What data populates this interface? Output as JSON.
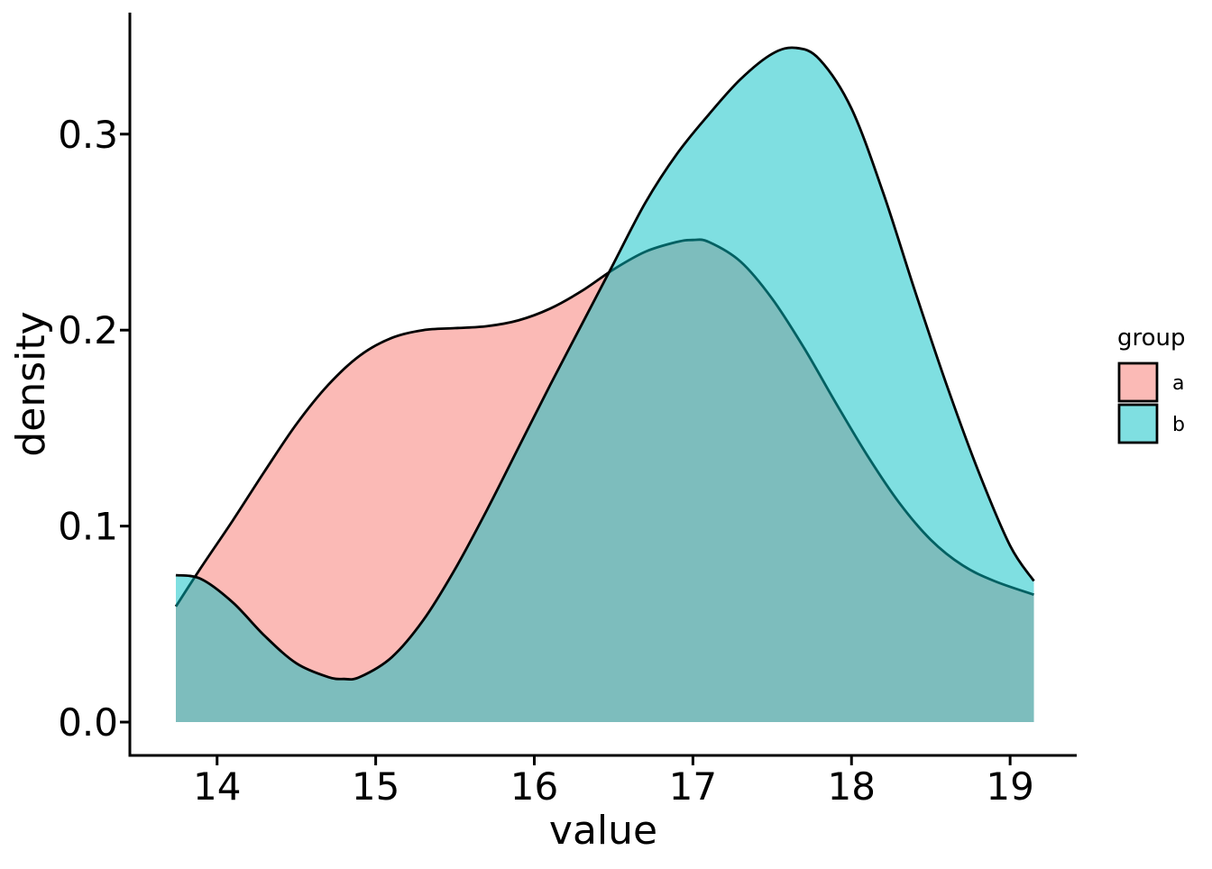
{
  "chart_data": {
    "type": "area",
    "chart_kind": "density",
    "xlabel": "value",
    "ylabel": "density",
    "xlim": [
      13.45,
      19.42
    ],
    "ylim": [
      -0.017,
      0.362
    ],
    "x_ticks": [
      14,
      15,
      16,
      17,
      18,
      19
    ],
    "x_tick_labels": [
      "14",
      "15",
      "16",
      "17",
      "18",
      "19"
    ],
    "y_ticks": [
      0.0,
      0.1,
      0.2,
      0.3
    ],
    "y_tick_labels": [
      "0.0",
      "0.1",
      "0.2",
      "0.3"
    ],
    "grid": false,
    "fill_opacity": 0.5,
    "legend": {
      "title": "group",
      "placement": "right",
      "entries": [
        "a",
        "b"
      ]
    },
    "series": [
      {
        "name": "a",
        "color": "#F8766D",
        "x": [
          13.74,
          13.9,
          14.1,
          14.3,
          14.5,
          14.7,
          14.9,
          15.1,
          15.3,
          15.5,
          15.7,
          15.9,
          16.1,
          16.3,
          16.5,
          16.7,
          16.9,
          17.0,
          17.1,
          17.3,
          17.5,
          17.7,
          17.9,
          18.1,
          18.3,
          18.5,
          18.7,
          18.9,
          19.15
        ],
        "y": [
          0.059,
          0.079,
          0.103,
          0.128,
          0.152,
          0.172,
          0.187,
          0.196,
          0.2,
          0.201,
          0.202,
          0.205,
          0.211,
          0.22,
          0.231,
          0.24,
          0.245,
          0.246,
          0.245,
          0.235,
          0.216,
          0.191,
          0.163,
          0.136,
          0.112,
          0.093,
          0.08,
          0.072,
          0.065
        ]
      },
      {
        "name": "b",
        "color": "#00BFC4",
        "x": [
          13.74,
          13.9,
          14.1,
          14.3,
          14.5,
          14.7,
          14.8,
          14.9,
          15.1,
          15.3,
          15.5,
          15.7,
          15.9,
          16.1,
          16.3,
          16.5,
          16.7,
          16.9,
          17.1,
          17.3,
          17.5,
          17.65,
          17.8,
          18.0,
          18.2,
          18.4,
          18.6,
          18.8,
          19.0,
          19.15
        ],
        "y": [
          0.075,
          0.073,
          0.061,
          0.044,
          0.03,
          0.023,
          0.022,
          0.023,
          0.033,
          0.052,
          0.078,
          0.108,
          0.14,
          0.172,
          0.203,
          0.234,
          0.265,
          0.29,
          0.31,
          0.328,
          0.341,
          0.344,
          0.338,
          0.313,
          0.27,
          0.22,
          0.172,
          0.128,
          0.09,
          0.072
        ]
      }
    ]
  }
}
